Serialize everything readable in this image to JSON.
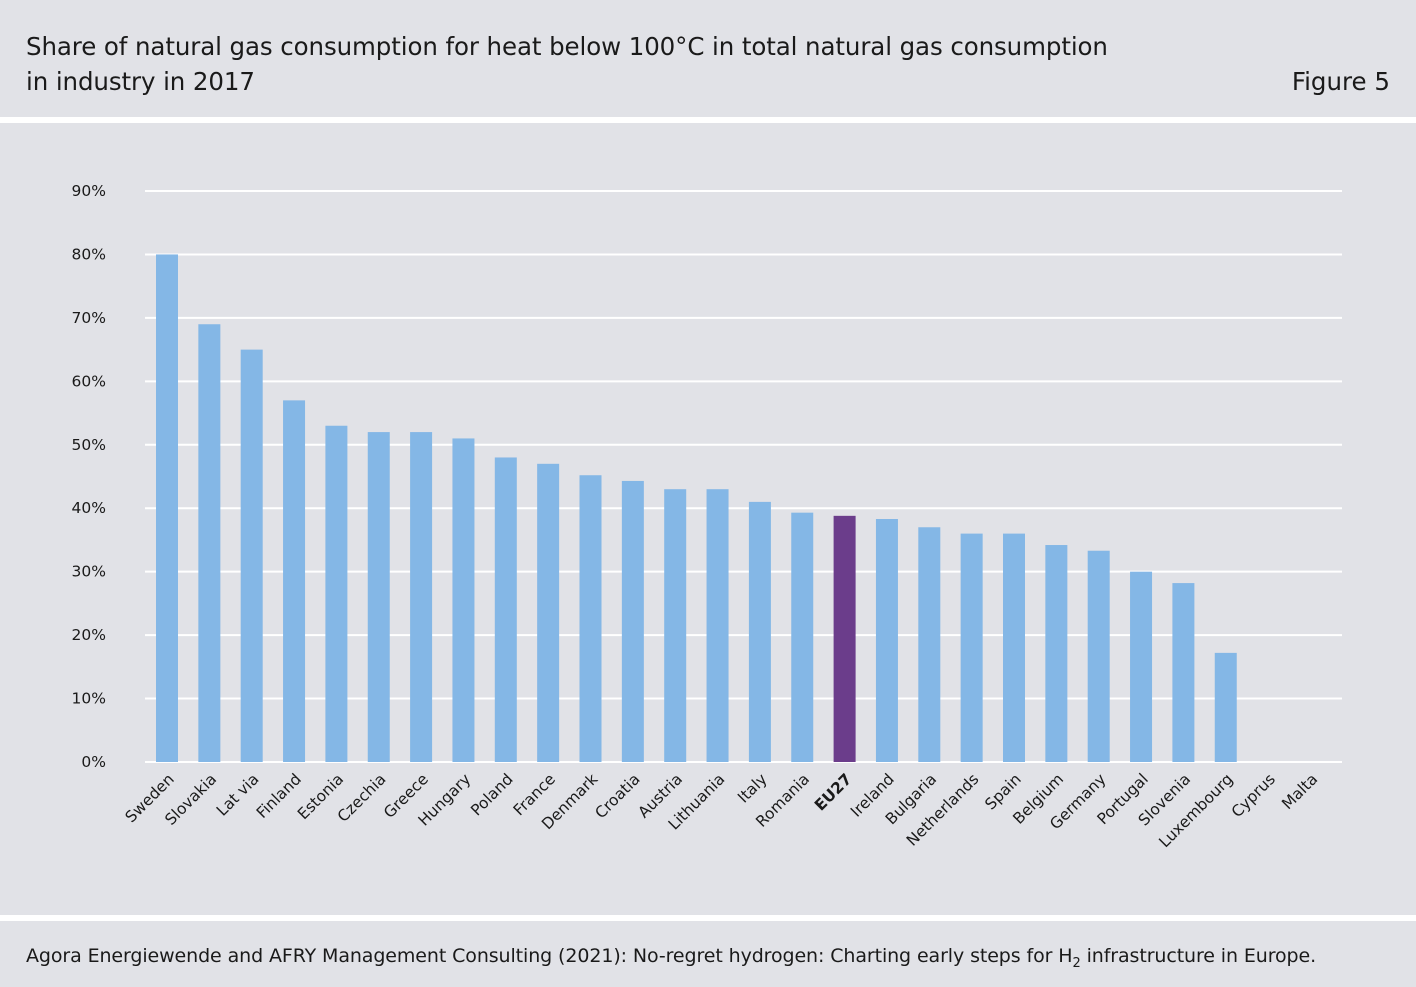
{
  "header": {
    "title_line_1": "Share of natural gas consumption for heat below 100°C in total natural gas consumption",
    "title_line_2": "in industry in 2017",
    "figure_label": "Figure 5"
  },
  "footer": {
    "source_prefix": "Agora Energiewende and AFRY Management Consulting (2021): No-regret hydrogen: Charting early steps for H",
    "source_subscript": "2",
    "source_suffix": " infrastructure in Europe."
  },
  "colors": {
    "panel_background": "#e1e2e7",
    "bar": "#84b7e6",
    "bar_highlight": "#6b3d8b",
    "gridline": "#ffffff"
  },
  "chart_data": {
    "type": "bar",
    "title": "Share of natural gas consumption for heat below 100°C in total natural gas consumption in industry in 2017",
    "xlabel": "",
    "ylabel": "",
    "ylim": [
      0,
      90
    ],
    "yticks": [
      0,
      10,
      20,
      30,
      40,
      50,
      60,
      70,
      80,
      90
    ],
    "ytick_labels": [
      "0%",
      "10%",
      "20%",
      "30%",
      "40%",
      "50%",
      "60%",
      "70%",
      "80%",
      "90%"
    ],
    "grid": true,
    "legend": "none",
    "highlight_category": "EU27",
    "categories": [
      "Sweden",
      "Slovakia",
      "Lat via",
      "Finland",
      "Estonia",
      "Czechia",
      "Greece",
      "Hungary",
      "Poland",
      "France",
      "Denmark",
      "Croatia",
      "Austria",
      "Lithuania",
      "Italy",
      "Romania",
      "EU27",
      "Ireland",
      "Bulgaria",
      "Netherlands",
      "Spain",
      "Belgium",
      "Germany",
      "Portugal",
      "Slovenia",
      "Luxembourg",
      "Cyprus",
      "Malta"
    ],
    "values": [
      80,
      69,
      65,
      57,
      53,
      52,
      52,
      51,
      48,
      47,
      45.2,
      44.3,
      43,
      43,
      41,
      39.3,
      38.8,
      38.3,
      37,
      36,
      36,
      34.2,
      33.3,
      30,
      28.2,
      17.2,
      0,
      0
    ]
  }
}
